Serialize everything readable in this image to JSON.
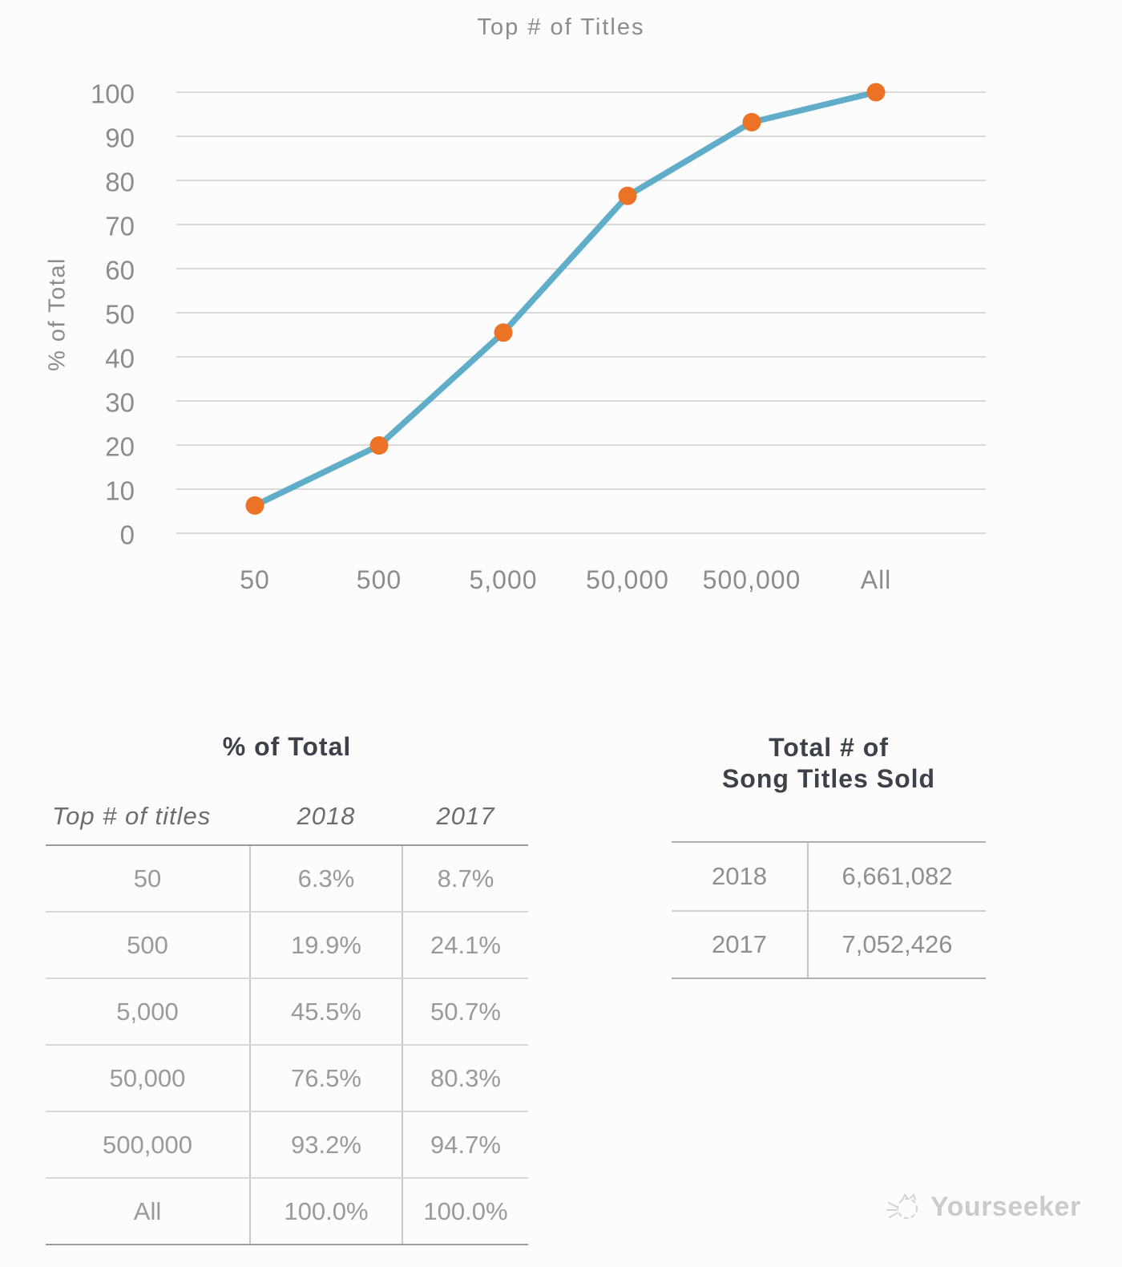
{
  "chart_data": {
    "type": "line",
    "title": "Top # of Titles",
    "xlabel": "",
    "ylabel": "% of Total",
    "categories": [
      "50",
      "500",
      "5,000",
      "50,000",
      "500,000",
      "All"
    ],
    "series": [
      {
        "name": "2018",
        "values": [
          6.3,
          19.9,
          45.5,
          76.5,
          93.2,
          100
        ]
      }
    ],
    "ylim": [
      0,
      100
    ],
    "ytick_step": 10,
    "grid": true,
    "legend": "none",
    "line_color": "#5fadc9",
    "marker_color": "#ec7226",
    "grid_color": "#dadada"
  },
  "percent_table": {
    "title": "% of Total",
    "columns": [
      "Top # of titles",
      "2018",
      "2017"
    ],
    "rows": [
      [
        "50",
        "6.3%",
        "8.7%"
      ],
      [
        "500",
        "19.9%",
        "24.1%"
      ],
      [
        "5,000",
        "45.5%",
        "50.7%"
      ],
      [
        "50,000",
        "76.5%",
        "80.3%"
      ],
      [
        "500,000",
        "93.2%",
        "94.7%"
      ],
      [
        "All",
        "100.0%",
        "100.0%"
      ]
    ]
  },
  "totals_table": {
    "title_line1": "Total # of",
    "title_line2": "Song Titles Sold",
    "rows": [
      [
        "2018",
        "6,661,082"
      ],
      [
        "2017",
        "7,052,426"
      ]
    ]
  },
  "watermark": {
    "label": "Yourseeker"
  }
}
